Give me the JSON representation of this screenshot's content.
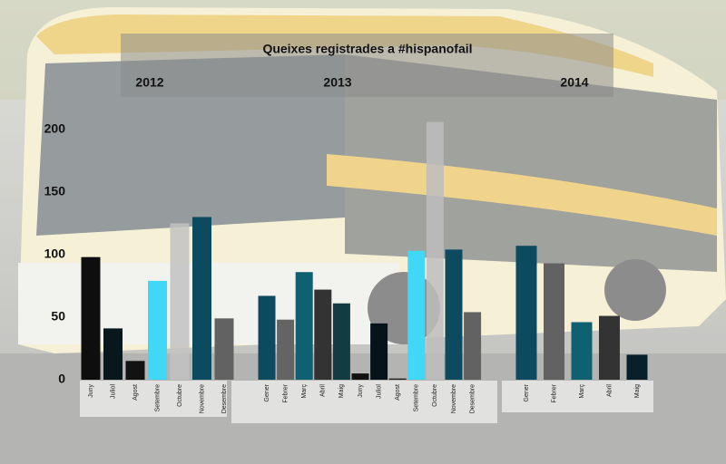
{
  "chart_data": {
    "type": "bar",
    "title": "Queixes registrades a #hispanofail",
    "ylim": [
      0,
      210
    ],
    "yticks": [
      0,
      50,
      100,
      150,
      200
    ],
    "groups": [
      {
        "name": "2012",
        "categories": [
          "Juny",
          "Juliol",
          "Agost",
          "Setembre",
          "Octubre",
          "Novembre",
          "Desembre"
        ],
        "values": [
          98,
          41,
          15,
          79,
          125,
          130,
          49
        ],
        "colors": [
          "#0e0e0e",
          "#08171c",
          "#121212",
          "#3fd8f7",
          "#c2c2c2",
          "#0c4a5f",
          "#626262"
        ]
      },
      {
        "name": "2013",
        "categories": [
          "Gener",
          "Febrer",
          "Març",
          "Abril",
          "Maig",
          "Juny",
          "Juliol",
          "Agost",
          "Setembre",
          "Octubre",
          "Novembre",
          "Desembre"
        ],
        "values": [
          67,
          48,
          86,
          72,
          61,
          5,
          45,
          1,
          103,
          206,
          104,
          54
        ],
        "colors": [
          "#0c4a5f",
          "#646464",
          "#0f6070",
          "#333333",
          "#123c42",
          "#111111",
          "#06131a",
          "#222222",
          "#3fd8f7",
          "#bdbdbd",
          "#0c4a5f",
          "#626262"
        ]
      },
      {
        "name": "2014",
        "categories": [
          "Gener",
          "Febrer",
          "Març",
          "Abril",
          "Maig"
        ],
        "values": [
          107,
          93,
          46,
          51,
          20
        ],
        "colors": [
          "#0c4a5f",
          "#626262",
          "#0f6070",
          "#333333",
          "#08202a"
        ]
      }
    ]
  }
}
